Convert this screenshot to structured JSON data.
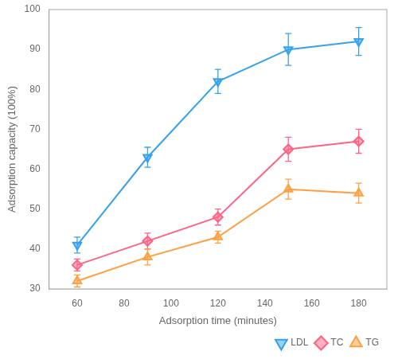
{
  "chart_data": {
    "type": "line",
    "xlabel": "Adsorption time (minutes)",
    "ylabel": "Adsorption capacity (100%)",
    "x": [
      60,
      90,
      120,
      150,
      180
    ],
    "series": [
      {
        "name": "LDL",
        "values": [
          41,
          63,
          82,
          90,
          92
        ],
        "errors": [
          2,
          2.5,
          3,
          4,
          3.5
        ],
        "marker": "triangle_down"
      },
      {
        "name": "TC",
        "values": [
          36,
          42,
          48,
          65,
          67
        ],
        "errors": [
          1.5,
          2,
          2,
          3,
          3
        ],
        "marker": "diamond"
      },
      {
        "name": "TG",
        "values": [
          32,
          38,
          43,
          55,
          54
        ],
        "errors": [
          1.5,
          2,
          1.5,
          2.5,
          2.5
        ],
        "marker": "triangle_up"
      }
    ],
    "xlim": [
      48,
      192
    ],
    "xticks": [
      60,
      80,
      100,
      120,
      140,
      160,
      180
    ],
    "ylim": [
      30,
      100
    ],
    "yticks": [
      30,
      40,
      50,
      60,
      70,
      80,
      90,
      100
    ],
    "grid": false,
    "legend": "lower right"
  }
}
